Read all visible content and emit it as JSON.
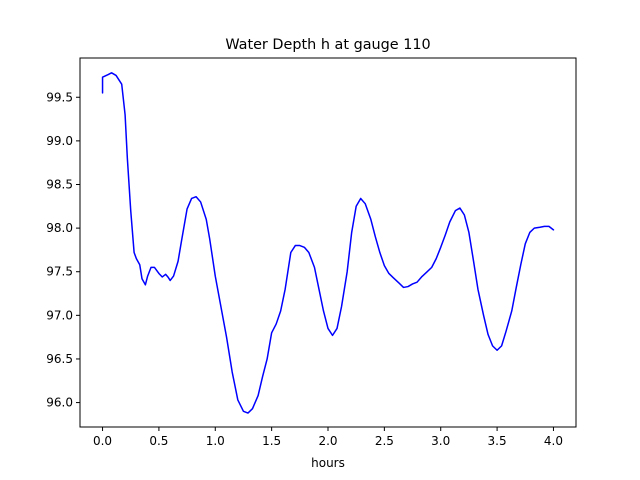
{
  "chart_data": {
    "type": "line",
    "title": "Water Depth h at gauge 110",
    "xlabel": "hours",
    "ylabel": "",
    "xlim": [
      -0.2,
      4.2
    ],
    "ylim": [
      95.72,
      99.95
    ],
    "xticks": [
      0.0,
      0.5,
      1.0,
      1.5,
      2.0,
      2.5,
      3.0,
      3.5,
      4.0
    ],
    "xtick_labels": [
      "0.0",
      "0.5",
      "1.0",
      "1.5",
      "2.0",
      "2.5",
      "3.0",
      "3.5",
      "4.0"
    ],
    "yticks": [
      96.0,
      96.5,
      97.0,
      97.5,
      98.0,
      98.5,
      99.0,
      99.5
    ],
    "ytick_labels": [
      "96.0",
      "96.5",
      "97.0",
      "97.5",
      "98.0",
      "98.5",
      "99.0",
      "99.5"
    ],
    "grid": false,
    "legend": "none",
    "series": [
      {
        "color": "#0000ff",
        "x": [
          0.0,
          0.0,
          0.05,
          0.08,
          0.12,
          0.17,
          0.2,
          0.22,
          0.25,
          0.28,
          0.3,
          0.33,
          0.35,
          0.38,
          0.4,
          0.43,
          0.46,
          0.5,
          0.53,
          0.56,
          0.58,
          0.6,
          0.63,
          0.67,
          0.7,
          0.75,
          0.79,
          0.83,
          0.87,
          0.92,
          0.95,
          1.0,
          1.05,
          1.1,
          1.15,
          1.2,
          1.25,
          1.29,
          1.33,
          1.38,
          1.42,
          1.46,
          1.5,
          1.54,
          1.58,
          1.62,
          1.67,
          1.71,
          1.75,
          1.79,
          1.83,
          1.88,
          1.92,
          1.96,
          2.0,
          2.04,
          2.08,
          2.12,
          2.17,
          2.21,
          2.25,
          2.29,
          2.33,
          2.38,
          2.42,
          2.46,
          2.5,
          2.54,
          2.58,
          2.63,
          2.67,
          2.71,
          2.75,
          2.79,
          2.83,
          2.88,
          2.92,
          2.96,
          3.0,
          3.04,
          3.08,
          3.13,
          3.17,
          3.21,
          3.25,
          3.29,
          3.33,
          3.38,
          3.42,
          3.46,
          3.5,
          3.54,
          3.58,
          3.63,
          3.67,
          3.71,
          3.75,
          3.79,
          3.83,
          3.88,
          3.92,
          3.96,
          4.0
        ],
        "values": [
          99.55,
          99.73,
          99.76,
          99.78,
          99.75,
          99.65,
          99.3,
          98.8,
          98.2,
          97.72,
          97.65,
          97.58,
          97.42,
          97.35,
          97.45,
          97.55,
          97.55,
          97.48,
          97.44,
          97.47,
          97.44,
          97.4,
          97.45,
          97.62,
          97.85,
          98.22,
          98.34,
          98.36,
          98.3,
          98.1,
          97.88,
          97.45,
          97.1,
          96.75,
          96.35,
          96.03,
          95.9,
          95.88,
          95.93,
          96.08,
          96.3,
          96.5,
          96.8,
          96.9,
          97.05,
          97.3,
          97.72,
          97.8,
          97.8,
          97.78,
          97.72,
          97.55,
          97.3,
          97.05,
          96.85,
          96.77,
          96.85,
          97.1,
          97.5,
          97.95,
          98.25,
          98.34,
          98.28,
          98.1,
          97.9,
          97.72,
          97.57,
          97.48,
          97.43,
          97.37,
          97.32,
          97.33,
          97.36,
          97.38,
          97.44,
          97.5,
          97.55,
          97.65,
          97.78,
          97.92,
          98.07,
          98.2,
          98.23,
          98.15,
          97.95,
          97.63,
          97.3,
          97.0,
          96.78,
          96.65,
          96.6,
          96.65,
          96.82,
          97.05,
          97.32,
          97.58,
          97.82,
          97.95,
          98.0,
          98.01,
          98.02,
          98.02,
          97.98
        ]
      }
    ]
  }
}
